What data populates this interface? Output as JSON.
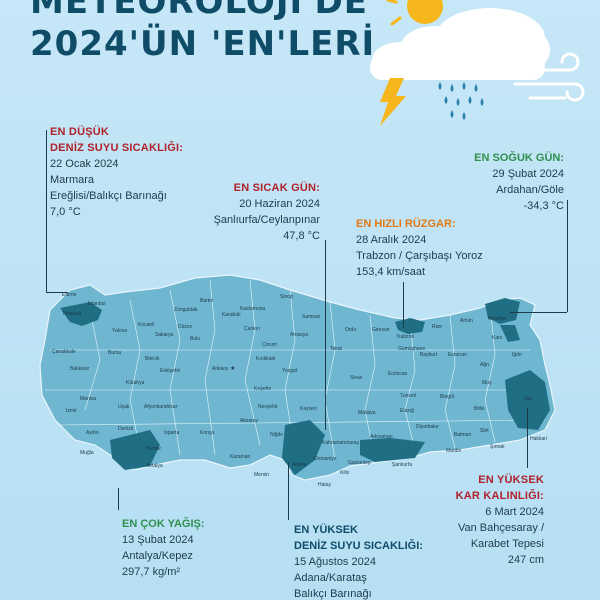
{
  "title": {
    "line1": "METEOROLOJİ'DE",
    "line2": "2024'ÜN 'EN'LERİ"
  },
  "annotations": {
    "min_sea_temp": {
      "heading1": "EN DÜŞÜK",
      "heading2": "DENİZ SUYU SICAKLIĞI:",
      "date": "22 Ocak 2024",
      "place1": "Marmara",
      "place2": "Ereğlisi/Balıkçı Barınağı",
      "value": "7,0 °C"
    },
    "hottest_day": {
      "heading": "EN SICAK GÜN:",
      "date": "20 Haziran 2024",
      "place": "Şanlıurfa/Ceylanpınar",
      "value": "47,8 °C"
    },
    "coldest_day": {
      "heading": "EN SOĞUK GÜN:",
      "date": "29 Şubat 2024",
      "place": "Ardahan/Göle",
      "value": "-34,3 °C"
    },
    "fastest_wind": {
      "heading": "EN HIZLI RÜZGAR:",
      "date": "28 Aralık 2024",
      "place": "Trabzon / Çarşıbaşı Yoroz",
      "value": "153,4 km/saat"
    },
    "most_rain": {
      "heading": "EN ÇOK YAĞIŞ:",
      "date": "13 Şubat 2024",
      "place": "Antalya/Kepez",
      "value": "297,7 kg/m²"
    },
    "max_sea_temp": {
      "heading1": "EN YÜKSEK",
      "heading2": "DENİZ SUYU SICAKLIĞI:",
      "date": "15 Ağustos 2024",
      "place1": "Adana/Karataş",
      "place2": "Balıkçı Barınağı"
    },
    "max_snow": {
      "heading1": "EN YÜKSEK",
      "heading2": "KAR KALINLIĞI:",
      "date": "6 Mart 2024",
      "place1": "Van Bahçesaray /",
      "place2": "Karabet Tepesi",
      "value": "247 cm"
    }
  },
  "map_labels": {
    "edirne": "Edirne",
    "istanbul": "İstanbul",
    "tekirdag": "Tekirdağ",
    "kocaeli": "Kocaeli",
    "bartin": "Bartın",
    "sinop": "Sinop",
    "kastamonu": "Kastamonu",
    "samsun": "Samsun",
    "zonguldak": "Zonguldak",
    "karabuk": "Karabük",
    "ordu": "Ordu",
    "rize": "Rize",
    "artvin": "Artvin",
    "ardahan": "Ardahan",
    "trabzon": "Trabzon",
    "giresun": "Giresun",
    "kars": "Kars",
    "igdir": "Iğdır",
    "amasya": "Amasya",
    "tokat": "Tokat",
    "corum": "Çorum",
    "bayburt": "Bayburt",
    "gumushane": "Gümüşhane",
    "erzurum": "Erzurum",
    "canakkale": "Çanakkale",
    "bursa": "Bursa",
    "bilecik": "Bilecik",
    "eskisehir": "Eskişehir",
    "ankara": "Ankara",
    "kirikkale": "Kırıkkale",
    "yozgat": "Yozgat",
    "sivas": "Sivas",
    "erzincan": "Erzincan",
    "agri": "Ağrı",
    "mus": "Muş",
    "van": "Van",
    "balikesir": "Balıkesir",
    "kutahya": "Kütahya",
    "kirsehir": "Kırşehir",
    "tunceli": "Tunceli",
    "bingol": "Bingöl",
    "bitlis": "Bitlis",
    "manisa": "Manisa",
    "usak": "Uşak",
    "afyon": "Afyonkarahisar",
    "nevsehir": "Nevşehir",
    "kayseri": "Kayseri",
    "malatya": "Malatya",
    "elazig": "Elazığ",
    "izmir": "İzmir",
    "aksaray": "Aksaray",
    "adiyaman": "Adıyaman",
    "diyarbakir": "Diyarbakır",
    "batman": "Batman",
    "siirt": "Siirt",
    "hakkari": "Hakkari",
    "aydin": "Aydın",
    "denizli": "Denizli",
    "isparta": "Isparta",
    "konya": "Konya",
    "nigde": "Niğde",
    "kahramanmaras": "Kahramanmaraş",
    "sanliurfa": "Şanlıurfa",
    "mardin": "Mardin",
    "sirnak": "Şırnak",
    "mugla": "Muğla",
    "burdur": "Burdur",
    "karaman": "Karaman",
    "adana": "Adana",
    "osmaniye": "Osmaniye",
    "gaziantep": "Gaziantep",
    "antalya": "Antalya",
    "mersin": "Mersin",
    "hatay": "Hatay",
    "kilis": "Kilis",
    "sakarya": "Sakarya",
    "duzce": "Düzce",
    "bolu": "Bolu",
    "yalova": "Yalova",
    "cankiri": "Çankırı"
  },
  "colors": {
    "background": "#bfe3f5",
    "land": "#6fb6d1",
    "highlight": "#1f6e84",
    "accent_red": "#b0212b",
    "accent_green": "#2f8f4f",
    "accent_orange": "#e07a18",
    "title": "#0f4c68"
  }
}
